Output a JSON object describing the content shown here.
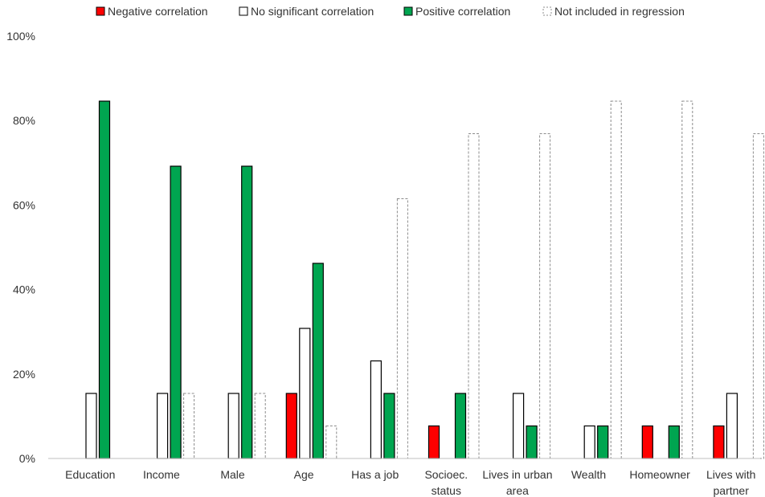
{
  "chart_data": {
    "type": "bar",
    "title": "",
    "xlabel": "",
    "ylabel": "",
    "ylim": [
      0,
      100
    ],
    "yticks": [
      0,
      20,
      40,
      60,
      80,
      100
    ],
    "ytick_labels": [
      "0%",
      "20%",
      "40%",
      "60%",
      "80%",
      "100%"
    ],
    "grid": false,
    "legend_position": "top",
    "categories": [
      [
        "Education"
      ],
      [
        "Income"
      ],
      [
        "Male"
      ],
      [
        "Age"
      ],
      [
        "Has a job"
      ],
      [
        "Socioec.",
        "status"
      ],
      [
        "Lives in urban",
        "area"
      ],
      [
        "Wealth"
      ],
      [
        "Homeowner"
      ],
      [
        "Lives with",
        "partner"
      ]
    ],
    "series": [
      {
        "name": "Negative correlation",
        "style": "solid",
        "fill": "#ff0000",
        "stroke": "#000000",
        "values": [
          0,
          0,
          0,
          15.4,
          0,
          7.7,
          0,
          0,
          7.7,
          7.7
        ]
      },
      {
        "name": "No significant correlation",
        "style": "solid",
        "fill": "#ffffff",
        "stroke": "#000000",
        "values": [
          15.4,
          15.4,
          15.4,
          30.8,
          23.1,
          0,
          15.4,
          7.7,
          0,
          15.4
        ]
      },
      {
        "name": "Positive correlation",
        "style": "solid",
        "fill": "#00a550",
        "stroke": "#000000",
        "values": [
          84.6,
          69.2,
          69.2,
          46.2,
          15.4,
          15.4,
          7.7,
          7.7,
          7.7,
          0
        ]
      },
      {
        "name": "Not included in regression",
        "style": "dashed",
        "fill": "#ffffff",
        "stroke": "#8c8c8c",
        "values": [
          0,
          15.4,
          15.4,
          7.7,
          61.5,
          76.9,
          76.9,
          84.6,
          84.6,
          76.9
        ]
      }
    ]
  }
}
